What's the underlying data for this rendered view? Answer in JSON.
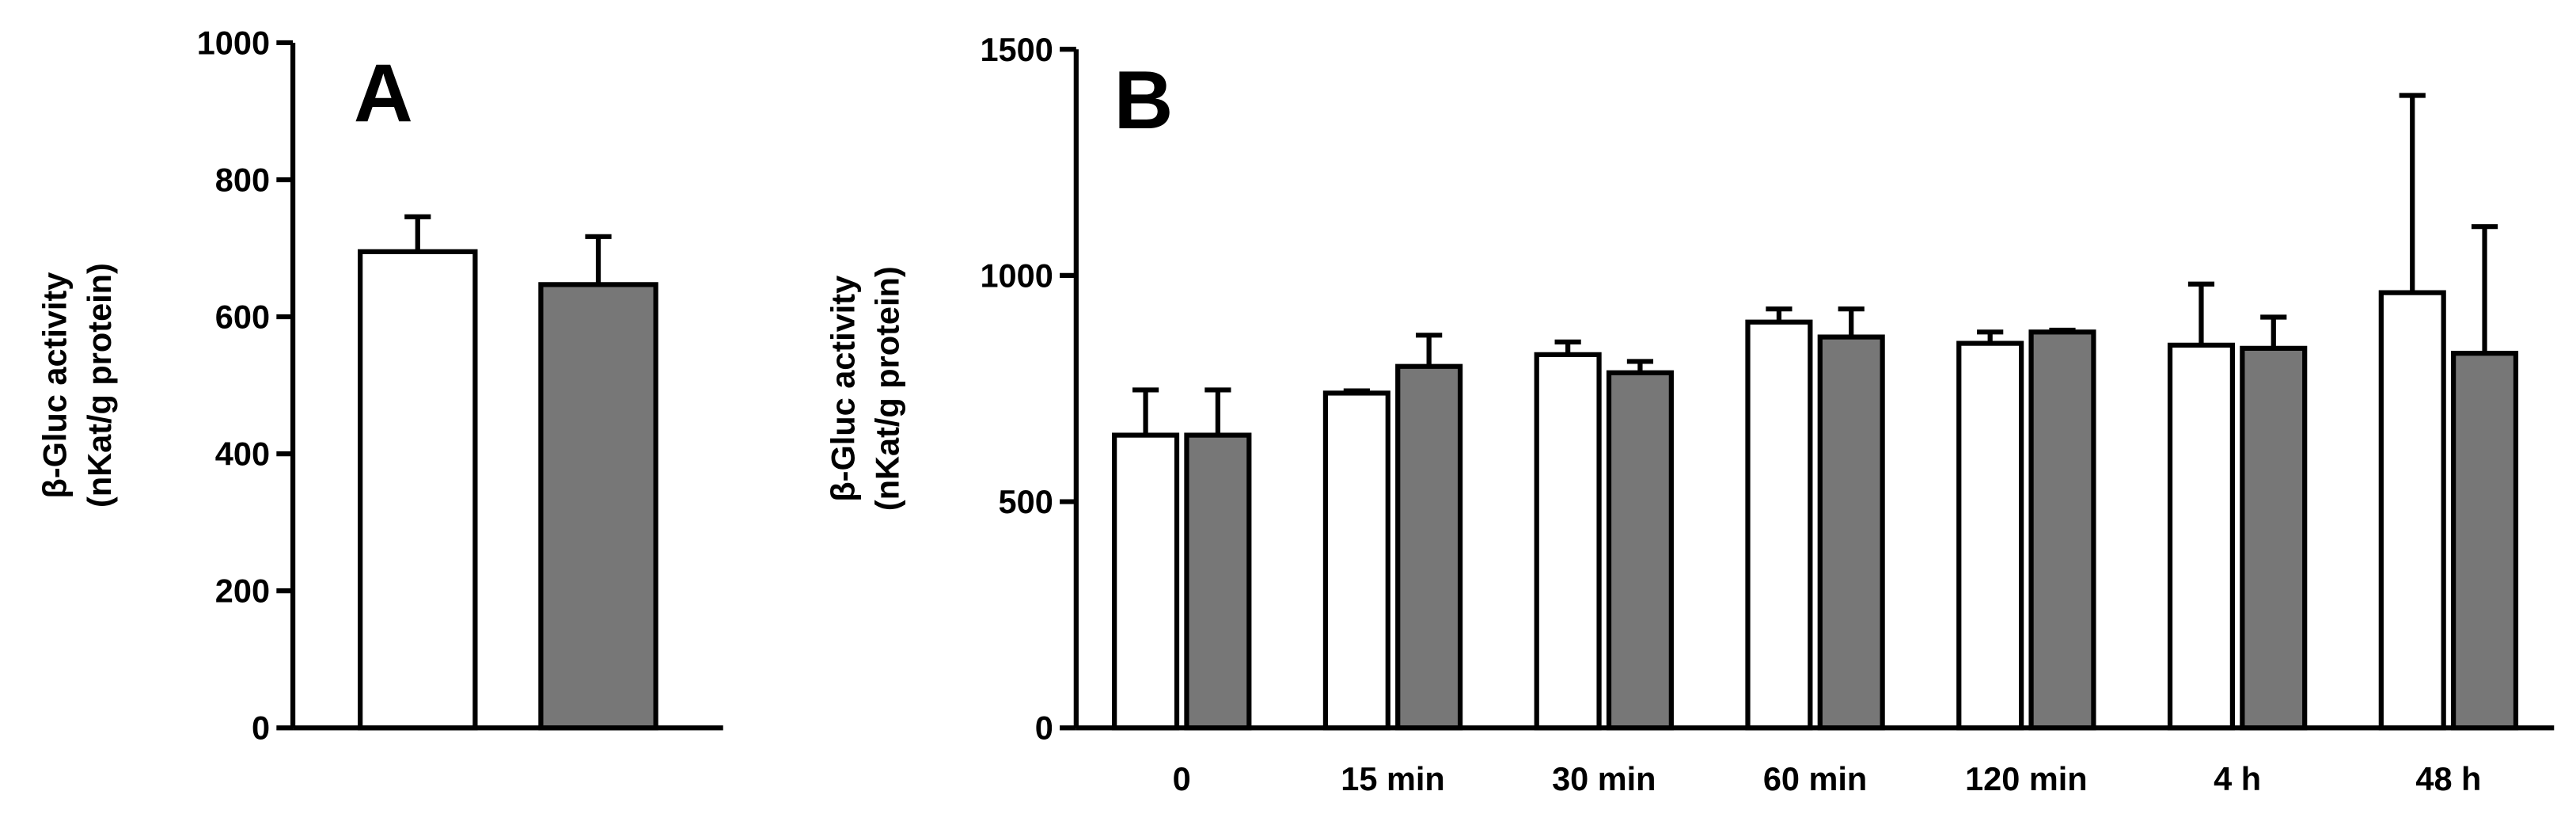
{
  "chart_data": [
    {
      "type": "bar",
      "title": "A",
      "ylabel": [
        "β-Gluc activity",
        "(nKat/g protein)"
      ],
      "categories": [
        null
      ],
      "series": [
        {
          "color": "#ffffff",
          "values": [
            695
          ],
          "errors": [
            51
          ]
        },
        {
          "color": "#777777",
          "values": [
            647
          ],
          "errors": [
            70
          ]
        }
      ],
      "ylim": [
        0,
        1000
      ],
      "yticks": [
        0,
        200,
        400,
        600,
        800,
        1000
      ]
    },
    {
      "type": "bar",
      "title": "B",
      "ylabel": [
        "β-Gluc activity",
        "(nKat/g protein)"
      ],
      "categories": [
        "0",
        "15 min",
        "30 min",
        "60 min",
        "120 min",
        "4 h",
        "48 h"
      ],
      "series": [
        {
          "color": "#ffffff",
          "values": [
            647,
            740,
            825,
            897,
            850,
            846,
            962
          ],
          "errors": [
            100,
            5,
            28,
            29,
            25,
            135,
            436
          ]
        },
        {
          "color": "#777777",
          "values": [
            647,
            799,
            785,
            864,
            875,
            839,
            828
          ],
          "errors": [
            100,
            69,
            25,
            62,
            4,
            69,
            280
          ]
        }
      ],
      "ylim": [
        0,
        1500
      ],
      "yticks": [
        0,
        500,
        1000,
        1500
      ]
    }
  ]
}
